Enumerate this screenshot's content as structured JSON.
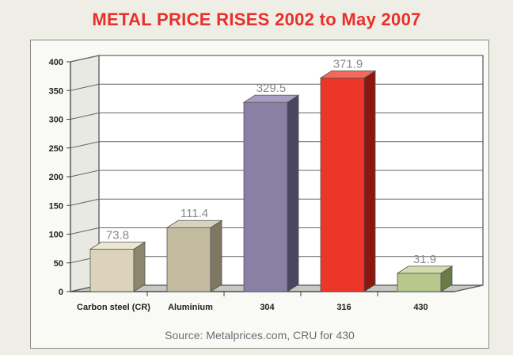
{
  "chart_data": {
    "type": "bar",
    "title": "METAL PRICE RISES 2002 to May 2007",
    "source": "Source:  Metalprices.com, CRU for 430",
    "categories": [
      "Carbon steel (CR)",
      "Aluminium",
      "304",
      "316",
      "430"
    ],
    "values": [
      73.8,
      111.4,
      329.5,
      371.9,
      31.9
    ],
    "value_labels": [
      "73.8",
      "111.4",
      "329.5",
      "371.9",
      "31.9"
    ],
    "y_ticks": [
      "0",
      "50",
      "100",
      "150",
      "200",
      "250",
      "300",
      "350",
      "400"
    ],
    "ylim": [
      0,
      400
    ],
    "grid": true,
    "bar_colors": [
      "#dcd3bc",
      "#c3bba0",
      "#8a80a6",
      "#ec3628",
      "#b6c88c"
    ],
    "bar_side_colors": [
      "#8d8770",
      "#7e7862",
      "#4a4560",
      "#8a1810",
      "#6a7a48"
    ],
    "bar_top_colors": [
      "#ece6d4",
      "#d9d3bd",
      "#a79ec2",
      "#f26a5c",
      "#d0dcae"
    ]
  }
}
